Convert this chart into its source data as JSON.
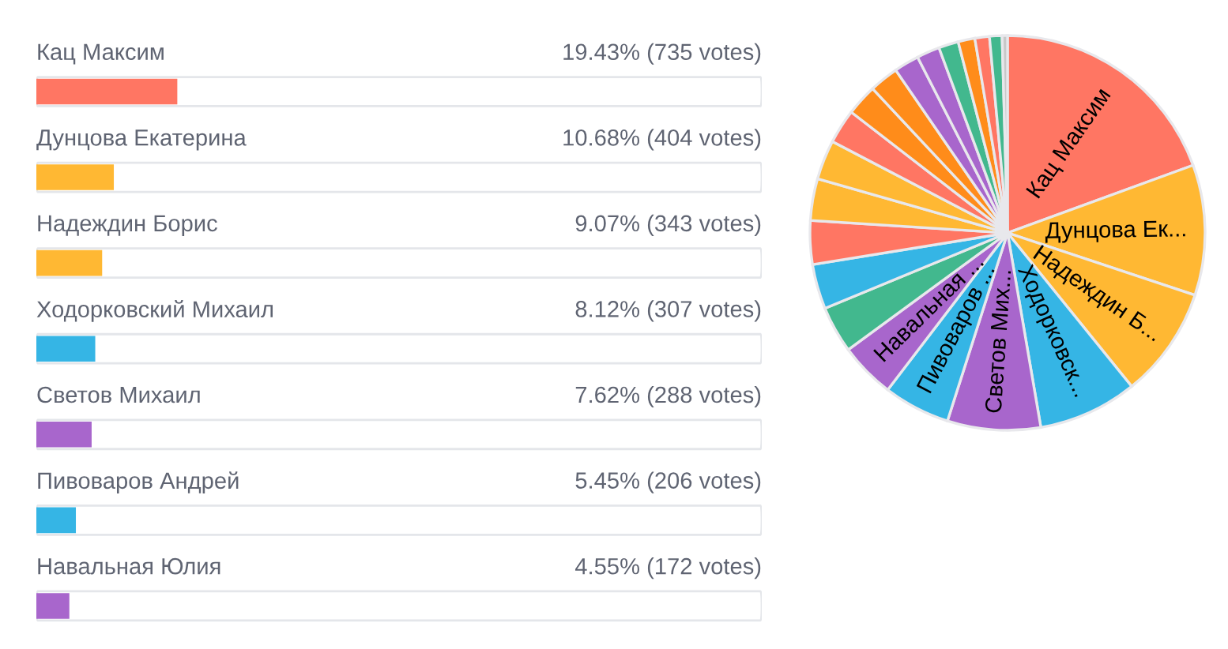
{
  "chart_data": [
    {
      "type": "bar",
      "orientation": "horizontal",
      "categories": [
        "Кац Максим",
        "Дунцова Екатерина",
        "Надеждин Борис",
        "Ходорковский Михаил",
        "Светов Михаил",
        "Пивоваров Андрей",
        "Навальная Юлия"
      ],
      "values": [
        19.43,
        10.68,
        9.07,
        8.12,
        7.62,
        5.45,
        4.55
      ],
      "colors": [
        "#ff7663",
        "#ffb833",
        "#ffb833",
        "#35b5e5",
        "#a866cc",
        "#35b5e5",
        "#a866cc"
      ],
      "value_labels": [
        "19.43% (735 votes)",
        "10.68% (404 votes)",
        "9.07% (343 votes)",
        "8.12% (307 votes)",
        "7.62% (288 votes)",
        "5.45% (206 votes)",
        "4.55% (172 votes)"
      ],
      "xlim": [
        0,
        100
      ],
      "legend": false
    },
    {
      "type": "pie",
      "categories": [
        "Кац Максим",
        "Дунцова Ек...",
        "Надеждин Б...",
        "Ходорковск...",
        "Светов Мих...",
        "Пивоваров ...",
        "Навальная ...",
        null,
        null,
        null,
        null,
        null,
        null,
        null,
        null,
        null,
        null,
        null,
        null,
        null,
        null,
        null
      ],
      "values": [
        19.43,
        10.68,
        9.07,
        8.12,
        7.62,
        5.45,
        4.55,
        3.84,
        3.67,
        3.58,
        3.41,
        3.24,
        2.82,
        2.56,
        2.39,
        2.05,
        1.88,
        1.62,
        1.37,
        1.19,
        1.02,
        0.44
      ],
      "colors": [
        "#ff7663",
        "#ffb833",
        "#ffb833",
        "#35b5e5",
        "#a866cc",
        "#35b5e5",
        "#a866cc",
        "#42b88e",
        "#35b5e5",
        "#ff7663",
        "#ffb833",
        "#ffb833",
        "#ff7663",
        "#ff8c1a",
        "#ff8c1a",
        "#a866cc",
        "#a866cc",
        "#42b88e",
        "#ff8c1a",
        "#ff7663",
        "#42b88e",
        "#c8c8c8"
      ],
      "legend": false
    }
  ]
}
